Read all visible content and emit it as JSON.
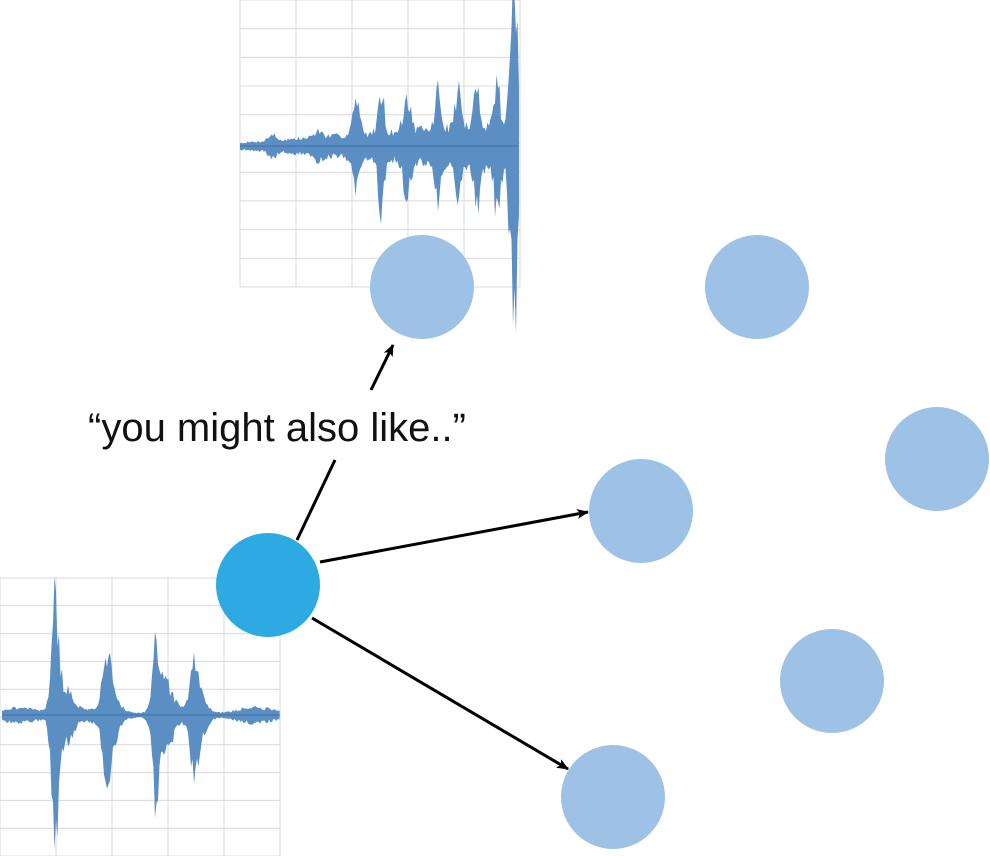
{
  "diagram": {
    "caption": "“you might also like..”",
    "colors": {
      "source_node": "#2eaae2",
      "target_node": "#9dc2e6",
      "waveform": "#5b8fc4",
      "waveform_axis": "#3d6fa3",
      "grid": "#d9d9d9",
      "arrow": "#000000",
      "background": "#ffffff"
    },
    "nodes": [
      {
        "id": "source",
        "role": "source",
        "data_name": "source-node"
      },
      {
        "id": "n1",
        "role": "recommendation",
        "data_name": "node-top-left"
      },
      {
        "id": "n2",
        "role": "item",
        "data_name": "node-top-right"
      },
      {
        "id": "n3",
        "role": "item",
        "data_name": "node-right"
      },
      {
        "id": "n4",
        "role": "recommendation",
        "data_name": "node-middle"
      },
      {
        "id": "n5",
        "role": "item",
        "data_name": "node-lower-right"
      },
      {
        "id": "n6",
        "role": "recommendation",
        "data_name": "node-bottom"
      }
    ],
    "edges": [
      {
        "from": "source",
        "to": "n1",
        "via": "caption"
      },
      {
        "from": "source",
        "to": "n4"
      },
      {
        "from": "source",
        "to": "n6"
      }
    ],
    "waveforms": [
      {
        "id": "top",
        "data_name": "waveform-top"
      },
      {
        "id": "bottom",
        "data_name": "waveform-bottom"
      }
    ]
  }
}
